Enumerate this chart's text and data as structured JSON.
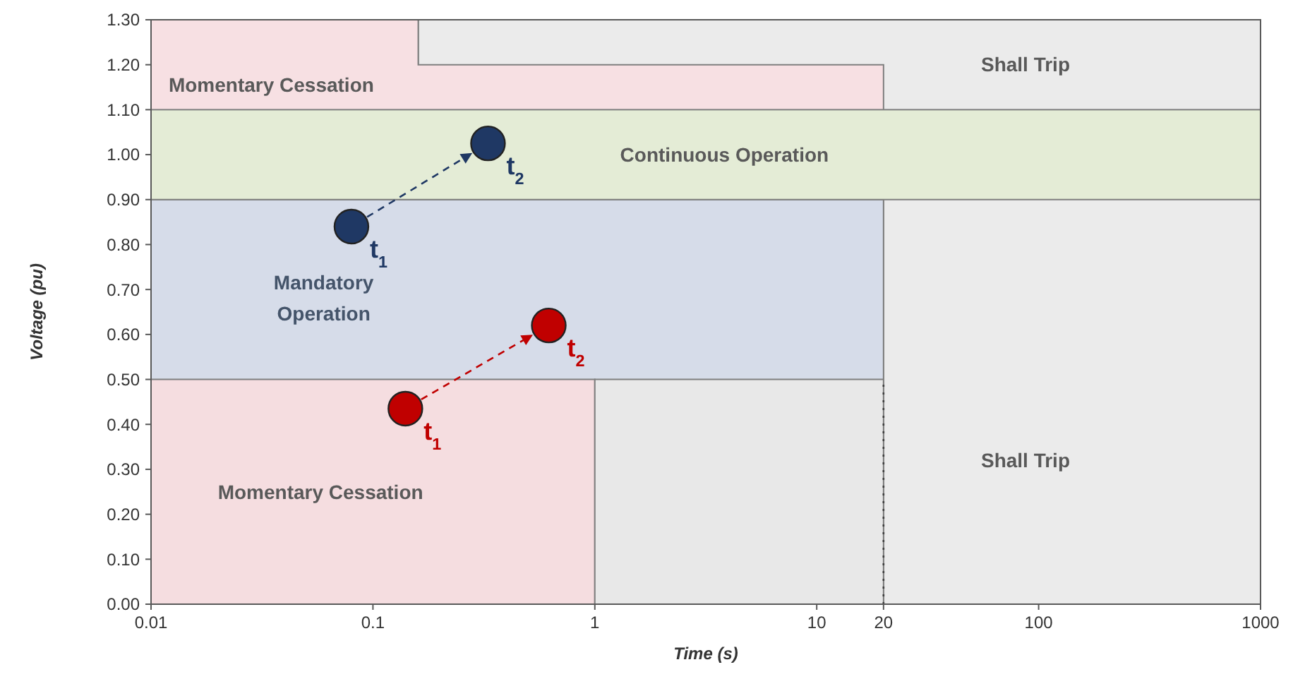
{
  "chart_data": {
    "type": "area",
    "xlabel": "Time (s)",
    "ylabel": "Voltage (pu)",
    "log": "x",
    "grid": false,
    "xlim": [
      0.01,
      1000
    ],
    "xticks": [
      {
        "value": 0.01,
        "label": "0.01"
      },
      0.1,
      1,
      10,
      20,
      100,
      1000
    ],
    "ylim": [
      0,
      1.3
    ],
    "yticks": [
      {
        "value": 0,
        "label": "0.00"
      },
      {
        "value": 0.1,
        "label": "0.10"
      },
      {
        "value": 0.2,
        "label": "0.20"
      },
      {
        "value": 0.3,
        "label": "0.30"
      },
      {
        "value": 0.4,
        "label": "0.40"
      },
      {
        "value": 0.5,
        "label": "0.50"
      },
      {
        "value": 0.6,
        "label": "0.60"
      },
      {
        "value": 0.7,
        "label": "0.70"
      },
      {
        "value": 0.8,
        "label": "0.80"
      },
      {
        "value": 0.9,
        "label": "0.90"
      },
      {
        "value": 1,
        "label": "1.00"
      },
      {
        "value": 1.1,
        "label": "1.10"
      },
      {
        "value": 1.2,
        "label": "1.20"
      },
      {
        "value": 1.3,
        "label": "1.30"
      }
    ],
    "bands": [
      {
        "axis": "y",
        "from": 0.9,
        "to": 1.1,
        "color": "#e4ecd6"
      }
    ],
    "series": [
      {
        "color": "#ebebeb",
        "x": [
          0.16,
          1000
        ],
        "values": [
          1.3,
          1.3
        ]
      },
      {
        "color": "#f7e0e3",
        "x": [
          0.01,
          0.16,
          0.16,
          20
        ],
        "values": [
          1.3,
          1.3,
          1.2,
          1.2
        ]
      },
      {
        "color": "#d6dce9",
        "x": [
          0.01,
          20
        ],
        "values": [
          0.9,
          0.9
        ]
      },
      {
        "color": "#f5dde0",
        "x": [
          0.01,
          1
        ],
        "values": [
          0.5,
          0.5
        ]
      },
      {
        "color": "#e8e8e8",
        "x": [
          1,
          20
        ],
        "values": [
          0.5,
          0.5
        ]
      },
      {
        "type": "line",
        "color": "#404040",
        "line_style": "dotted",
        "x": [
          20,
          20
        ],
        "values": [
          0,
          0.5
        ]
      },
      {
        "type": "scatter",
        "color": "#1f3864",
        "marker": "circle",
        "x": [
          0.08,
          0.33
        ],
        "values": [
          0.84,
          1.025
        ]
      },
      {
        "type": "scatter",
        "color": "#c00000",
        "marker": "circle",
        "x": [
          0.14,
          0.62
        ],
        "values": [
          0.435,
          0.62
        ]
      }
    ],
    "annotations": [
      "Momentary Cessation",
      "Shall Trip",
      "Continuous Operation",
      "Mandatory Operation",
      "Momentary Cessation",
      "Shall Trip",
      {
        "text": "t$_{1}$",
        "x": 0.08,
        "y": 0.84
      },
      {
        "text": "t$_{2}$",
        "x": 0.33,
        "y": 1.025
      },
      {
        "text": "t$_{1}$",
        "x": 0.14,
        "y": 0.435
      },
      {
        "text": "t$_{2}$",
        "x": 0.62,
        "y": 0.62
      }
    ]
  }
}
